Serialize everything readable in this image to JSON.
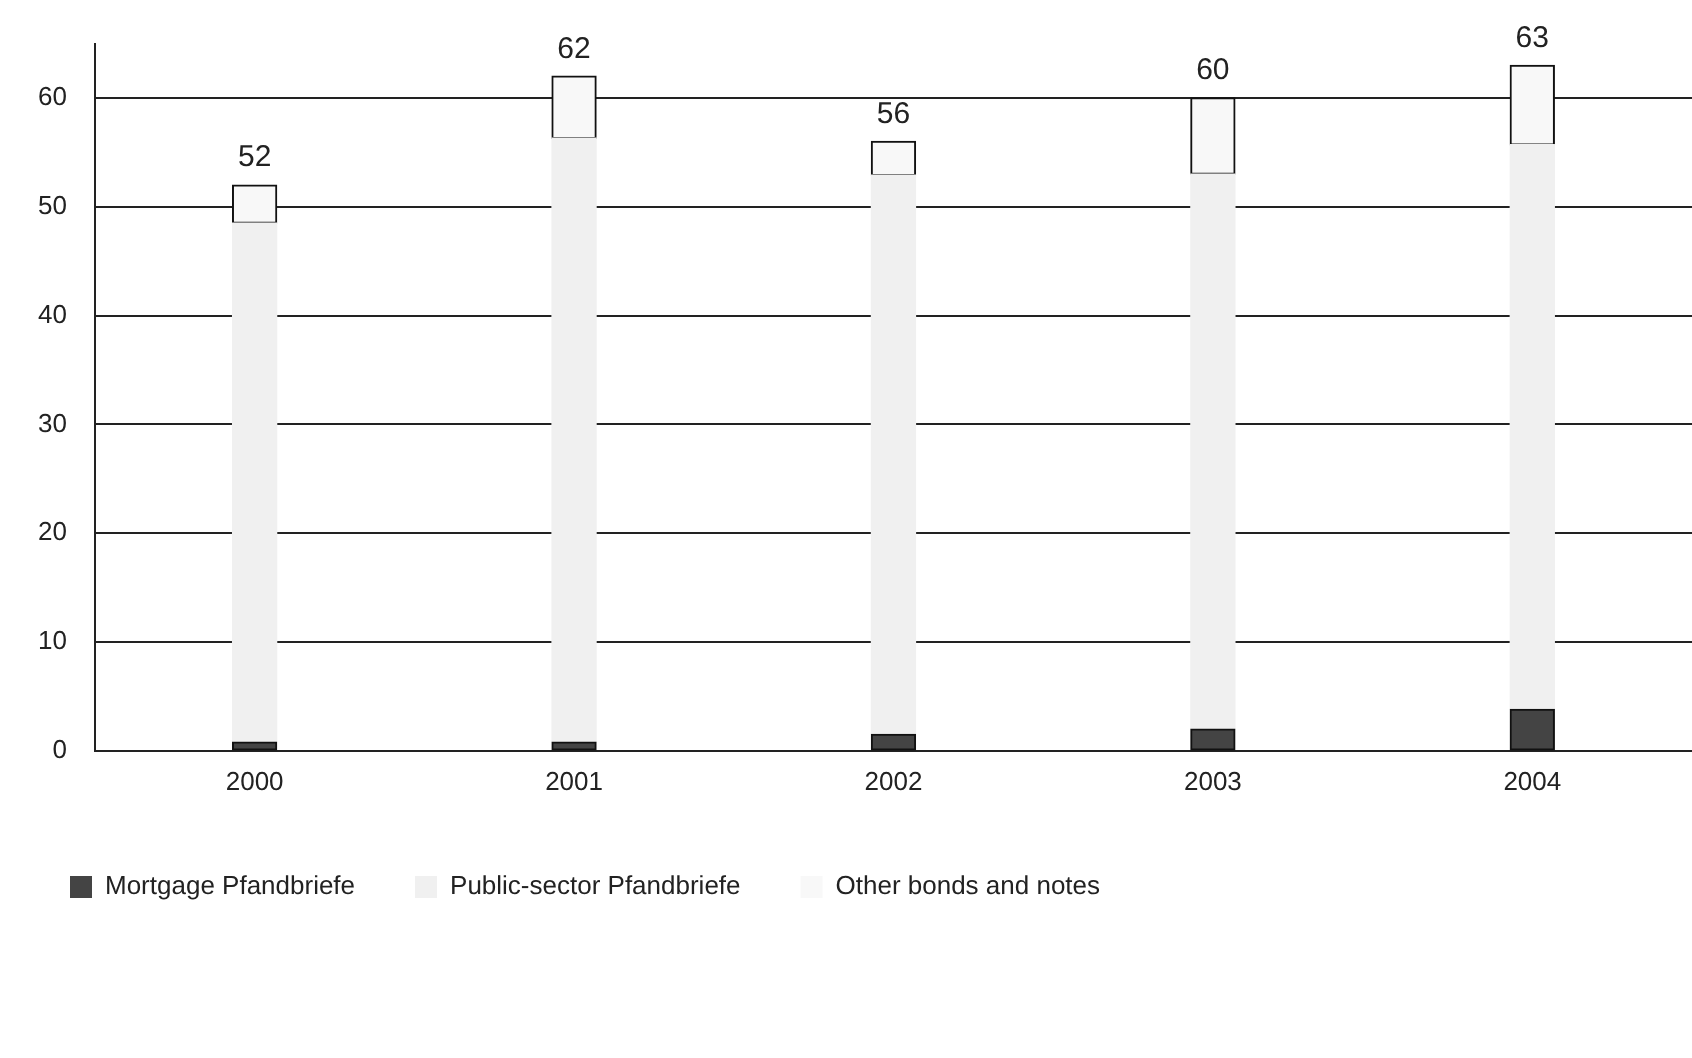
{
  "chart_data": {
    "type": "bar",
    "stacked": true,
    "categories": [
      "2000",
      "2001",
      "2002",
      "2003",
      "2004"
    ],
    "series": [
      {
        "name": "Mortgage Pfandbriefe",
        "color": "#444444",
        "values": [
          0.8,
          0.8,
          1.5,
          2,
          3.8
        ]
      },
      {
        "name": "Public-sector Pfandbriefe",
        "color": "#f0f0f0",
        "values": [
          47.7,
          55.5,
          51.4,
          51,
          51.9
        ]
      },
      {
        "name": "Other bonds and notes",
        "color": "#f8f8f8",
        "values": [
          3.5,
          5.7,
          3.1,
          7,
          7.3
        ]
      }
    ],
    "totals": [
      "52",
      "62",
      "56",
      "60",
      "63"
    ],
    "ylim": [
      0,
      65
    ],
    "yticks": [
      0,
      10,
      20,
      30,
      40,
      50,
      60
    ],
    "grid": "y",
    "legend": "bottom"
  }
}
